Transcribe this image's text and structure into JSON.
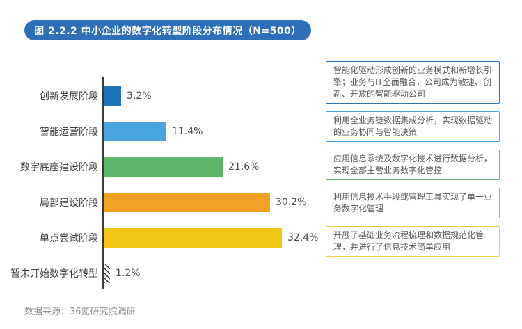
{
  "title": "图 2.2.2 中小企业的数字化转型阶段分布情况（N=500）",
  "source": "数据来源：36氪研究院调研",
  "colors": {
    "title_badge_bg": "#2E6FB7",
    "title_text": "#FFFFFF",
    "axis_line": "#3A3A3A",
    "category_label_text": "#3F3F3F",
    "value_label_text": "#4A4A4A",
    "annotation_text": "#595959",
    "source_text": "#8F8F8F",
    "background": "#FFFFFF"
  },
  "chart_data": {
    "type": "bar",
    "orientation": "horizontal",
    "title": "图 2.2.2 中小企业的数字化转型阶段分布情况（N=500）",
    "sample_size": "N=500",
    "xlabel": "",
    "ylabel": "",
    "xlim": [
      0,
      35
    ],
    "grid": false,
    "legend": "none",
    "categories": [
      "创新发展阶段",
      "智能运营阶段",
      "数字底座建设阶段",
      "局部建设阶段",
      "单点尝试阶段",
      "暂未开始数字化转型"
    ],
    "values": [
      3.2,
      11.4,
      21.6,
      30.2,
      32.4,
      1.2
    ],
    "value_labels": [
      "3.2%",
      "11.4%",
      "21.6%",
      "30.2%",
      "32.4%",
      "1.2%"
    ],
    "bar_colors": [
      "#1B74BC",
      "#49A5DE",
      "#5CB868",
      "#F0A125",
      "#F2C616",
      "hatch"
    ]
  },
  "annotations": [
    {
      "text": "智能化驱动形成创新的业务模式和新增长引擎；业务与IT全面融合，公司成为敏捷、创新、开放的智能驱动公司",
      "border_color": "#2E75B6"
    },
    {
      "text": "利用全业务链数据集成分析，实现数据驱动的业务协同与智能决策",
      "border_color": "#45A7DD"
    },
    {
      "text": "应用信息系统及数字化技术进行数据分析，实现全部主营业务数字化管控",
      "border_color": "#6BBE77"
    },
    {
      "text": "利用信息技术手段或管理工具实现了单一业务数字化管理",
      "border_color": "#E8A23C"
    },
    {
      "text": "开展了基础业务流程梳理和数据规范化管理，并进行了信息技术简单应用",
      "border_color": "#F0D04A"
    }
  ]
}
